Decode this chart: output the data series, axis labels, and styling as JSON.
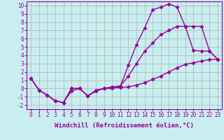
{
  "background_color": "#c8eef0",
  "grid_color": "#b0b0b0",
  "line_color": "#990099",
  "marker": "D",
  "markersize": 2.5,
  "linewidth": 1.0,
  "xlabel": "Windchill (Refroidissement éolien,°C)",
  "xlabel_fontsize": 6.5,
  "xlim": [
    -0.5,
    23.5
  ],
  "ylim": [
    -2.5,
    10.5
  ],
  "xticks": [
    0,
    1,
    2,
    3,
    4,
    5,
    6,
    7,
    8,
    9,
    10,
    11,
    12,
    13,
    14,
    15,
    16,
    17,
    18,
    19,
    20,
    21,
    22,
    23
  ],
  "yticks": [
    -2,
    -1,
    0,
    1,
    2,
    3,
    4,
    5,
    6,
    7,
    8,
    9,
    10
  ],
  "tick_fontsize": 5.5,
  "line1_x": [
    0,
    1,
    2,
    3,
    4,
    5,
    6,
    7,
    8,
    9,
    10,
    11,
    12,
    13,
    14,
    15,
    16,
    17,
    18,
    19,
    20,
    21,
    22,
    23
  ],
  "line1_y": [
    1.2,
    -0.2,
    -0.8,
    -1.5,
    -1.7,
    -0.3,
    0.0,
    -0.9,
    -0.3,
    0.0,
    0.0,
    0.2,
    2.8,
    5.3,
    7.3,
    9.5,
    9.8,
    10.2,
    9.8,
    7.5,
    4.6,
    4.5,
    4.5,
    3.5
  ],
  "line2_x": [
    0,
    1,
    2,
    3,
    4,
    5,
    6,
    7,
    8,
    9,
    10,
    11,
    12,
    13,
    14,
    15,
    16,
    17,
    18,
    19,
    20,
    21,
    22,
    23
  ],
  "line2_y": [
    1.2,
    -0.2,
    -0.8,
    -1.5,
    -1.7,
    0.0,
    0.0,
    -0.9,
    -0.3,
    0.0,
    0.2,
    0.3,
    1.5,
    3.0,
    4.5,
    5.5,
    6.5,
    7.0,
    7.5,
    7.5,
    7.5,
    7.5,
    4.5,
    3.5
  ],
  "line3_x": [
    0,
    1,
    2,
    3,
    4,
    5,
    6,
    7,
    8,
    9,
    10,
    11,
    12,
    13,
    14,
    15,
    16,
    17,
    18,
    19,
    20,
    21,
    22,
    23
  ],
  "line3_y": [
    1.2,
    -0.2,
    -0.8,
    -1.5,
    -1.7,
    0.0,
    0.0,
    -0.9,
    -0.2,
    0.0,
    0.1,
    0.1,
    0.2,
    0.4,
    0.7,
    1.1,
    1.5,
    2.0,
    2.5,
    2.9,
    3.1,
    3.3,
    3.5,
    3.5
  ]
}
